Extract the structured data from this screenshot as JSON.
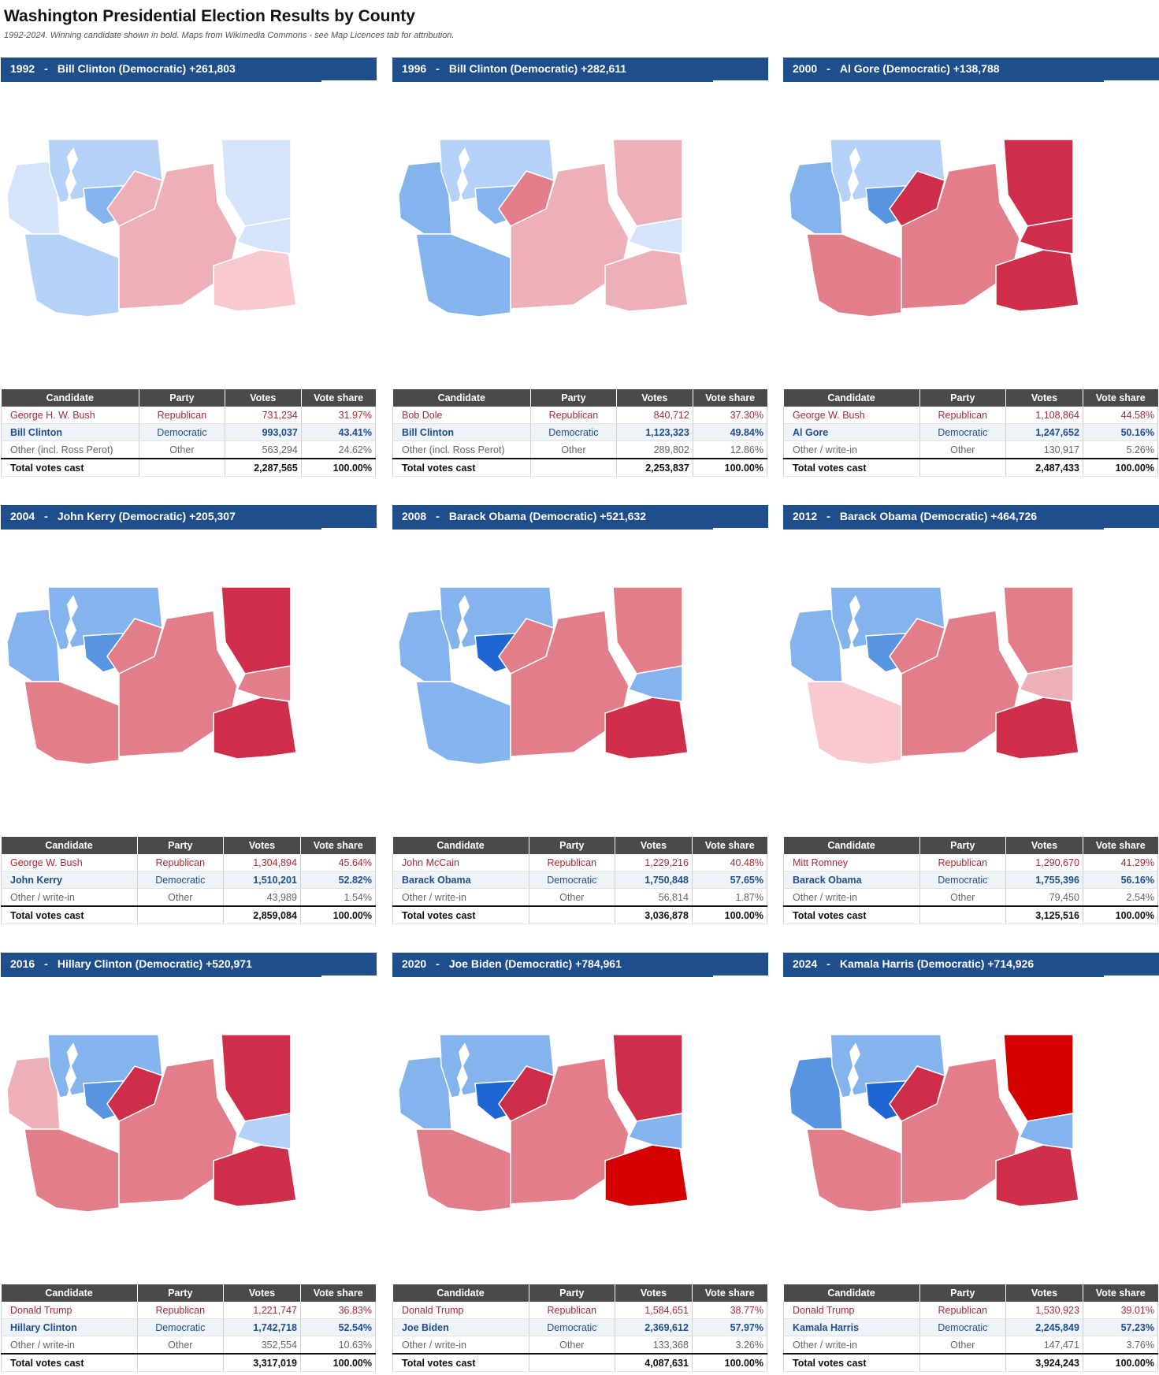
{
  "page": {
    "title": "Washington Presidential Election Results by County",
    "subtitle": "1992-2024. Winning candidate shown in bold. Maps from Wikimedia Commons - see Map Licences tab for attribution."
  },
  "table_headers": [
    "Candidate",
    "Party",
    "Votes",
    "Vote share"
  ],
  "colors": {
    "header_blue": "#1f4e8c",
    "table_header": "#4a4a4a",
    "dem_1": "#d4e4fb",
    "dem_2": "#b5d1f7",
    "dem_3": "#84b3ee",
    "dem_4": "#5894e0",
    "dem_5": "#1f66d4",
    "rep_1": "#f8c9cf",
    "rep_2": "#eeb0b8",
    "rep_3": "#e27d8a",
    "rep_4": "#cf2e4a",
    "rep_5": "#d40000"
  },
  "elections": [
    {
      "year": "1992",
      "headline": "Bill Clinton (Democratic) +261,803",
      "rows": [
        {
          "type": "rep",
          "candidate": "George H. W. Bush",
          "party": "Republican",
          "votes": "731,234",
          "share": "31.97%"
        },
        {
          "type": "dem",
          "candidate": "Bill Clinton",
          "party": "Democratic",
          "votes": "993,037",
          "share": "43.41%"
        },
        {
          "type": "oth",
          "candidate": "Other (incl. Ross Perot)",
          "party": "Other",
          "votes": "563,294",
          "share": "24.62%"
        },
        {
          "type": "tot",
          "candidate": "Total votes cast",
          "party": "",
          "votes": "2,287,565",
          "share": "100.00%"
        }
      ],
      "map": {
        "west": "dem_1",
        "puget": "dem_2",
        "king": "dem_3",
        "central": "rep_2",
        "okanogan": "rep_2",
        "northeast": "dem_1",
        "southeast": "rep_1",
        "south": "dem_2",
        "east": "dem_1"
      }
    },
    {
      "year": "1996",
      "headline": "Bill Clinton (Democratic) +282,611",
      "rows": [
        {
          "type": "rep",
          "candidate": "Bob Dole",
          "party": "Republican",
          "votes": "840,712",
          "share": "37.30%"
        },
        {
          "type": "dem",
          "candidate": "Bill Clinton",
          "party": "Democratic",
          "votes": "1,123,323",
          "share": "49.84%"
        },
        {
          "type": "oth",
          "candidate": "Other (incl. Ross Perot)",
          "party": "Other",
          "votes": "289,802",
          "share": "12.86%"
        },
        {
          "type": "tot",
          "candidate": "Total votes cast",
          "party": "",
          "votes": "2,253,837",
          "share": "100.00%"
        }
      ],
      "map": {
        "west": "dem_3",
        "puget": "dem_2",
        "king": "dem_3",
        "central": "rep_2",
        "okanogan": "rep_3",
        "northeast": "rep_2",
        "southeast": "rep_2",
        "south": "dem_3",
        "east": "dem_1"
      }
    },
    {
      "year": "2000",
      "headline": "Al Gore (Democratic) +138,788",
      "rows": [
        {
          "type": "rep",
          "candidate": "George W. Bush",
          "party": "Republican",
          "votes": "1,108,864",
          "share": "44.58%"
        },
        {
          "type": "dem",
          "candidate": "Al Gore",
          "party": "Democratic",
          "votes": "1,247,652",
          "share": "50.16%"
        },
        {
          "type": "oth",
          "candidate": "Other / write-in",
          "party": "Other",
          "votes": "130,917",
          "share": "5.26%"
        },
        {
          "type": "tot",
          "candidate": "Total votes cast",
          "party": "",
          "votes": "2,487,433",
          "share": "100.00%"
        }
      ],
      "map": {
        "west": "dem_3",
        "puget": "dem_2",
        "king": "dem_4",
        "central": "rep_3",
        "okanogan": "rep_4",
        "northeast": "rep_4",
        "southeast": "rep_4",
        "south": "rep_3",
        "east": "rep_4"
      }
    },
    {
      "year": "2004",
      "headline": "John Kerry (Democratic) +205,307",
      "rows": [
        {
          "type": "rep",
          "candidate": "George W. Bush",
          "party": "Republican",
          "votes": "1,304,894",
          "share": "45.64%"
        },
        {
          "type": "dem",
          "candidate": "John Kerry",
          "party": "Democratic",
          "votes": "1,510,201",
          "share": "52.82%"
        },
        {
          "type": "oth",
          "candidate": "Other / write-in",
          "party": "Other",
          "votes": "43,989",
          "share": "1.54%"
        },
        {
          "type": "tot",
          "candidate": "Total votes cast",
          "party": "",
          "votes": "2,859,084",
          "share": "100.00%"
        }
      ],
      "map": {
        "west": "dem_3",
        "puget": "dem_3",
        "king": "dem_4",
        "central": "rep_3",
        "okanogan": "rep_3",
        "northeast": "rep_4",
        "southeast": "rep_4",
        "south": "rep_3",
        "east": "rep_3"
      }
    },
    {
      "year": "2008",
      "headline": "Barack Obama (Democratic) +521,632",
      "rows": [
        {
          "type": "rep",
          "candidate": "John McCain",
          "party": "Republican",
          "votes": "1,229,216",
          "share": "40.48%"
        },
        {
          "type": "dem",
          "candidate": "Barack Obama",
          "party": "Democratic",
          "votes": "1,750,848",
          "share": "57.65%"
        },
        {
          "type": "oth",
          "candidate": "Other / write-in",
          "party": "Other",
          "votes": "56,814",
          "share": "1.87%"
        },
        {
          "type": "tot",
          "candidate": "Total votes cast",
          "party": "",
          "votes": "3,036,878",
          "share": "100.00%"
        }
      ],
      "map": {
        "west": "dem_3",
        "puget": "dem_3",
        "king": "dem_5",
        "central": "rep_3",
        "okanogan": "rep_3",
        "northeast": "rep_3",
        "southeast": "rep_4",
        "south": "dem_3",
        "east": "dem_3"
      }
    },
    {
      "year": "2012",
      "headline": "Barack Obama (Democratic) +464,726",
      "rows": [
        {
          "type": "rep",
          "candidate": "Mitt Romney",
          "party": "Republican",
          "votes": "1,290,670",
          "share": "41.29%"
        },
        {
          "type": "dem",
          "candidate": "Barack Obama",
          "party": "Democratic",
          "votes": "1,755,396",
          "share": "56.16%"
        },
        {
          "type": "oth",
          "candidate": "Other / write-in",
          "party": "Other",
          "votes": "79,450",
          "share": "2.54%"
        },
        {
          "type": "tot",
          "candidate": "Total votes cast",
          "party": "",
          "votes": "3,125,516",
          "share": "100.00%"
        }
      ],
      "map": {
        "west": "dem_3",
        "puget": "dem_3",
        "king": "dem_4",
        "central": "rep_3",
        "okanogan": "rep_3",
        "northeast": "rep_3",
        "southeast": "rep_4",
        "south": "rep_1",
        "east": "rep_2"
      }
    },
    {
      "year": "2016",
      "headline": "Hillary Clinton (Democratic) +520,971",
      "rows": [
        {
          "type": "rep",
          "candidate": "Donald Trump",
          "party": "Republican",
          "votes": "1,221,747",
          "share": "36.83%"
        },
        {
          "type": "dem",
          "candidate": "Hillary Clinton",
          "party": "Democratic",
          "votes": "1,742,718",
          "share": "52.54%"
        },
        {
          "type": "oth",
          "candidate": "Other / write-in",
          "party": "Other",
          "votes": "352,554",
          "share": "10.63%"
        },
        {
          "type": "tot",
          "candidate": "Total votes cast",
          "party": "",
          "votes": "3,317,019",
          "share": "100.00%"
        }
      ],
      "map": {
        "west": "rep_2",
        "puget": "dem_3",
        "king": "dem_4",
        "central": "rep_3",
        "okanogan": "rep_4",
        "northeast": "rep_4",
        "southeast": "rep_4",
        "south": "rep_3",
        "east": "dem_2"
      }
    },
    {
      "year": "2020",
      "headline": "Joe Biden (Democratic) +784,961",
      "rows": [
        {
          "type": "rep",
          "candidate": "Donald Trump",
          "party": "Republican",
          "votes": "1,584,651",
          "share": "38.77%"
        },
        {
          "type": "dem",
          "candidate": "Joe Biden",
          "party": "Democratic",
          "votes": "2,369,612",
          "share": "57.97%"
        },
        {
          "type": "oth",
          "candidate": "Other / write-in",
          "party": "Other",
          "votes": "133,368",
          "share": "3.26%"
        },
        {
          "type": "tot",
          "candidate": "Total votes cast",
          "party": "",
          "votes": "4,087,631",
          "share": "100.00%"
        }
      ],
      "map": {
        "west": "dem_3",
        "puget": "dem_3",
        "king": "dem_5",
        "central": "rep_3",
        "okanogan": "rep_4",
        "northeast": "rep_4",
        "southeast": "rep_5",
        "south": "rep_3",
        "east": "dem_3"
      }
    },
    {
      "year": "2024",
      "headline": "Kamala Harris (Democratic) +714,926",
      "rows": [
        {
          "type": "rep",
          "candidate": "Donald Trump",
          "party": "Republican",
          "votes": "1,530,923",
          "share": "39.01%"
        },
        {
          "type": "dem",
          "candidate": "Kamala Harris",
          "party": "Democratic",
          "votes": "2,245,849",
          "share": "57.23%"
        },
        {
          "type": "oth",
          "candidate": "Other / write-in",
          "party": "Other",
          "votes": "147,471",
          "share": "3.76%"
        },
        {
          "type": "tot",
          "candidate": "Total votes cast",
          "party": "",
          "votes": "3,924,243",
          "share": "100.00%"
        }
      ],
      "map": {
        "west": "dem_4",
        "puget": "dem_3",
        "king": "dem_5",
        "central": "rep_3",
        "okanogan": "rep_4",
        "northeast": "rep_5",
        "southeast": "rep_4",
        "south": "rep_3",
        "east": "dem_3"
      }
    }
  ]
}
